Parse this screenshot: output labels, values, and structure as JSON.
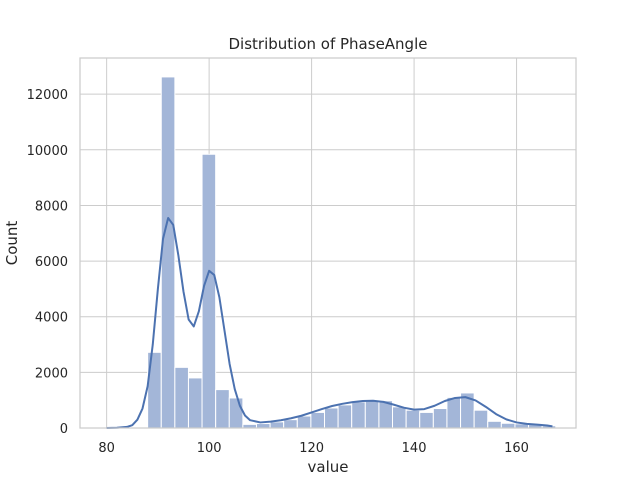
{
  "chart_data": {
    "type": "bar",
    "title": "Distribution of PhaseAngle",
    "xlabel": "value",
    "ylabel": "Count",
    "xlim": [
      74.8,
      171.6
    ],
    "ylim": [
      0,
      13300
    ],
    "x_ticks": [
      80,
      100,
      120,
      140,
      160
    ],
    "y_ticks": [
      0,
      2000,
      4000,
      6000,
      8000,
      10000,
      12000
    ],
    "grid": true,
    "bin_start": 88.0,
    "bin_width": 2.655,
    "bins": [
      {
        "x": 88.0,
        "count": 2720
      },
      {
        "x": 90.66,
        "count": 12620
      },
      {
        "x": 93.31,
        "count": 2180
      },
      {
        "x": 95.97,
        "count": 1800
      },
      {
        "x": 98.62,
        "count": 9840
      },
      {
        "x": 101.28,
        "count": 1380
      },
      {
        "x": 103.93,
        "count": 1080
      },
      {
        "x": 106.59,
        "count": 130
      },
      {
        "x": 109.24,
        "count": 160
      },
      {
        "x": 111.9,
        "count": 220
      },
      {
        "x": 114.55,
        "count": 300
      },
      {
        "x": 117.21,
        "count": 430
      },
      {
        "x": 119.86,
        "count": 560
      },
      {
        "x": 122.52,
        "count": 720
      },
      {
        "x": 125.17,
        "count": 830
      },
      {
        "x": 127.83,
        "count": 940
      },
      {
        "x": 130.48,
        "count": 1000
      },
      {
        "x": 133.14,
        "count": 980
      },
      {
        "x": 135.79,
        "count": 760
      },
      {
        "x": 138.45,
        "count": 640
      },
      {
        "x": 141.1,
        "count": 560
      },
      {
        "x": 143.76,
        "count": 700
      },
      {
        "x": 146.41,
        "count": 1100
      },
      {
        "x": 149.07,
        "count": 1260
      },
      {
        "x": 151.72,
        "count": 640
      },
      {
        "x": 154.38,
        "count": 240
      },
      {
        "x": 157.03,
        "count": 170
      },
      {
        "x": 159.69,
        "count": 150
      },
      {
        "x": 162.34,
        "count": 130
      },
      {
        "x": 165.0,
        "count": 80
      }
    ],
    "kde": [
      [
        80,
        0
      ],
      [
        82,
        8
      ],
      [
        84,
        40
      ],
      [
        85,
        100
      ],
      [
        86,
        300
      ],
      [
        87,
        700
      ],
      [
        88,
        1500
      ],
      [
        89,
        3000
      ],
      [
        90,
        5000
      ],
      [
        91,
        6800
      ],
      [
        92,
        7550
      ],
      [
        93,
        7300
      ],
      [
        94,
        6200
      ],
      [
        95,
        4900
      ],
      [
        96,
        3900
      ],
      [
        97,
        3650
      ],
      [
        98,
        4200
      ],
      [
        99,
        5100
      ],
      [
        100,
        5650
      ],
      [
        101,
        5500
      ],
      [
        102,
        4700
      ],
      [
        103,
        3500
      ],
      [
        104,
        2300
      ],
      [
        105,
        1400
      ],
      [
        106,
        800
      ],
      [
        107,
        450
      ],
      [
        108,
        280
      ],
      [
        110,
        200
      ],
      [
        112,
        230
      ],
      [
        114,
        280
      ],
      [
        116,
        350
      ],
      [
        118,
        440
      ],
      [
        120,
        560
      ],
      [
        122,
        680
      ],
      [
        124,
        790
      ],
      [
        126,
        870
      ],
      [
        128,
        930
      ],
      [
        130,
        970
      ],
      [
        132,
        980
      ],
      [
        134,
        940
      ],
      [
        136,
        840
      ],
      [
        138,
        730
      ],
      [
        140,
        660
      ],
      [
        142,
        680
      ],
      [
        144,
        800
      ],
      [
        146,
        970
      ],
      [
        148,
        1080
      ],
      [
        150,
        1110
      ],
      [
        152,
        990
      ],
      [
        154,
        760
      ],
      [
        156,
        500
      ],
      [
        158,
        310
      ],
      [
        160,
        200
      ],
      [
        162,
        150
      ],
      [
        164,
        120
      ],
      [
        166,
        90
      ],
      [
        167,
        60
      ]
    ],
    "colors": {
      "bar_fill": "#a3b6d8",
      "bar_edge": "#ffffff",
      "kde_line": "#4c72b0",
      "grid": "#cccccc",
      "frame": "#cccccc",
      "text": "#262626"
    }
  }
}
